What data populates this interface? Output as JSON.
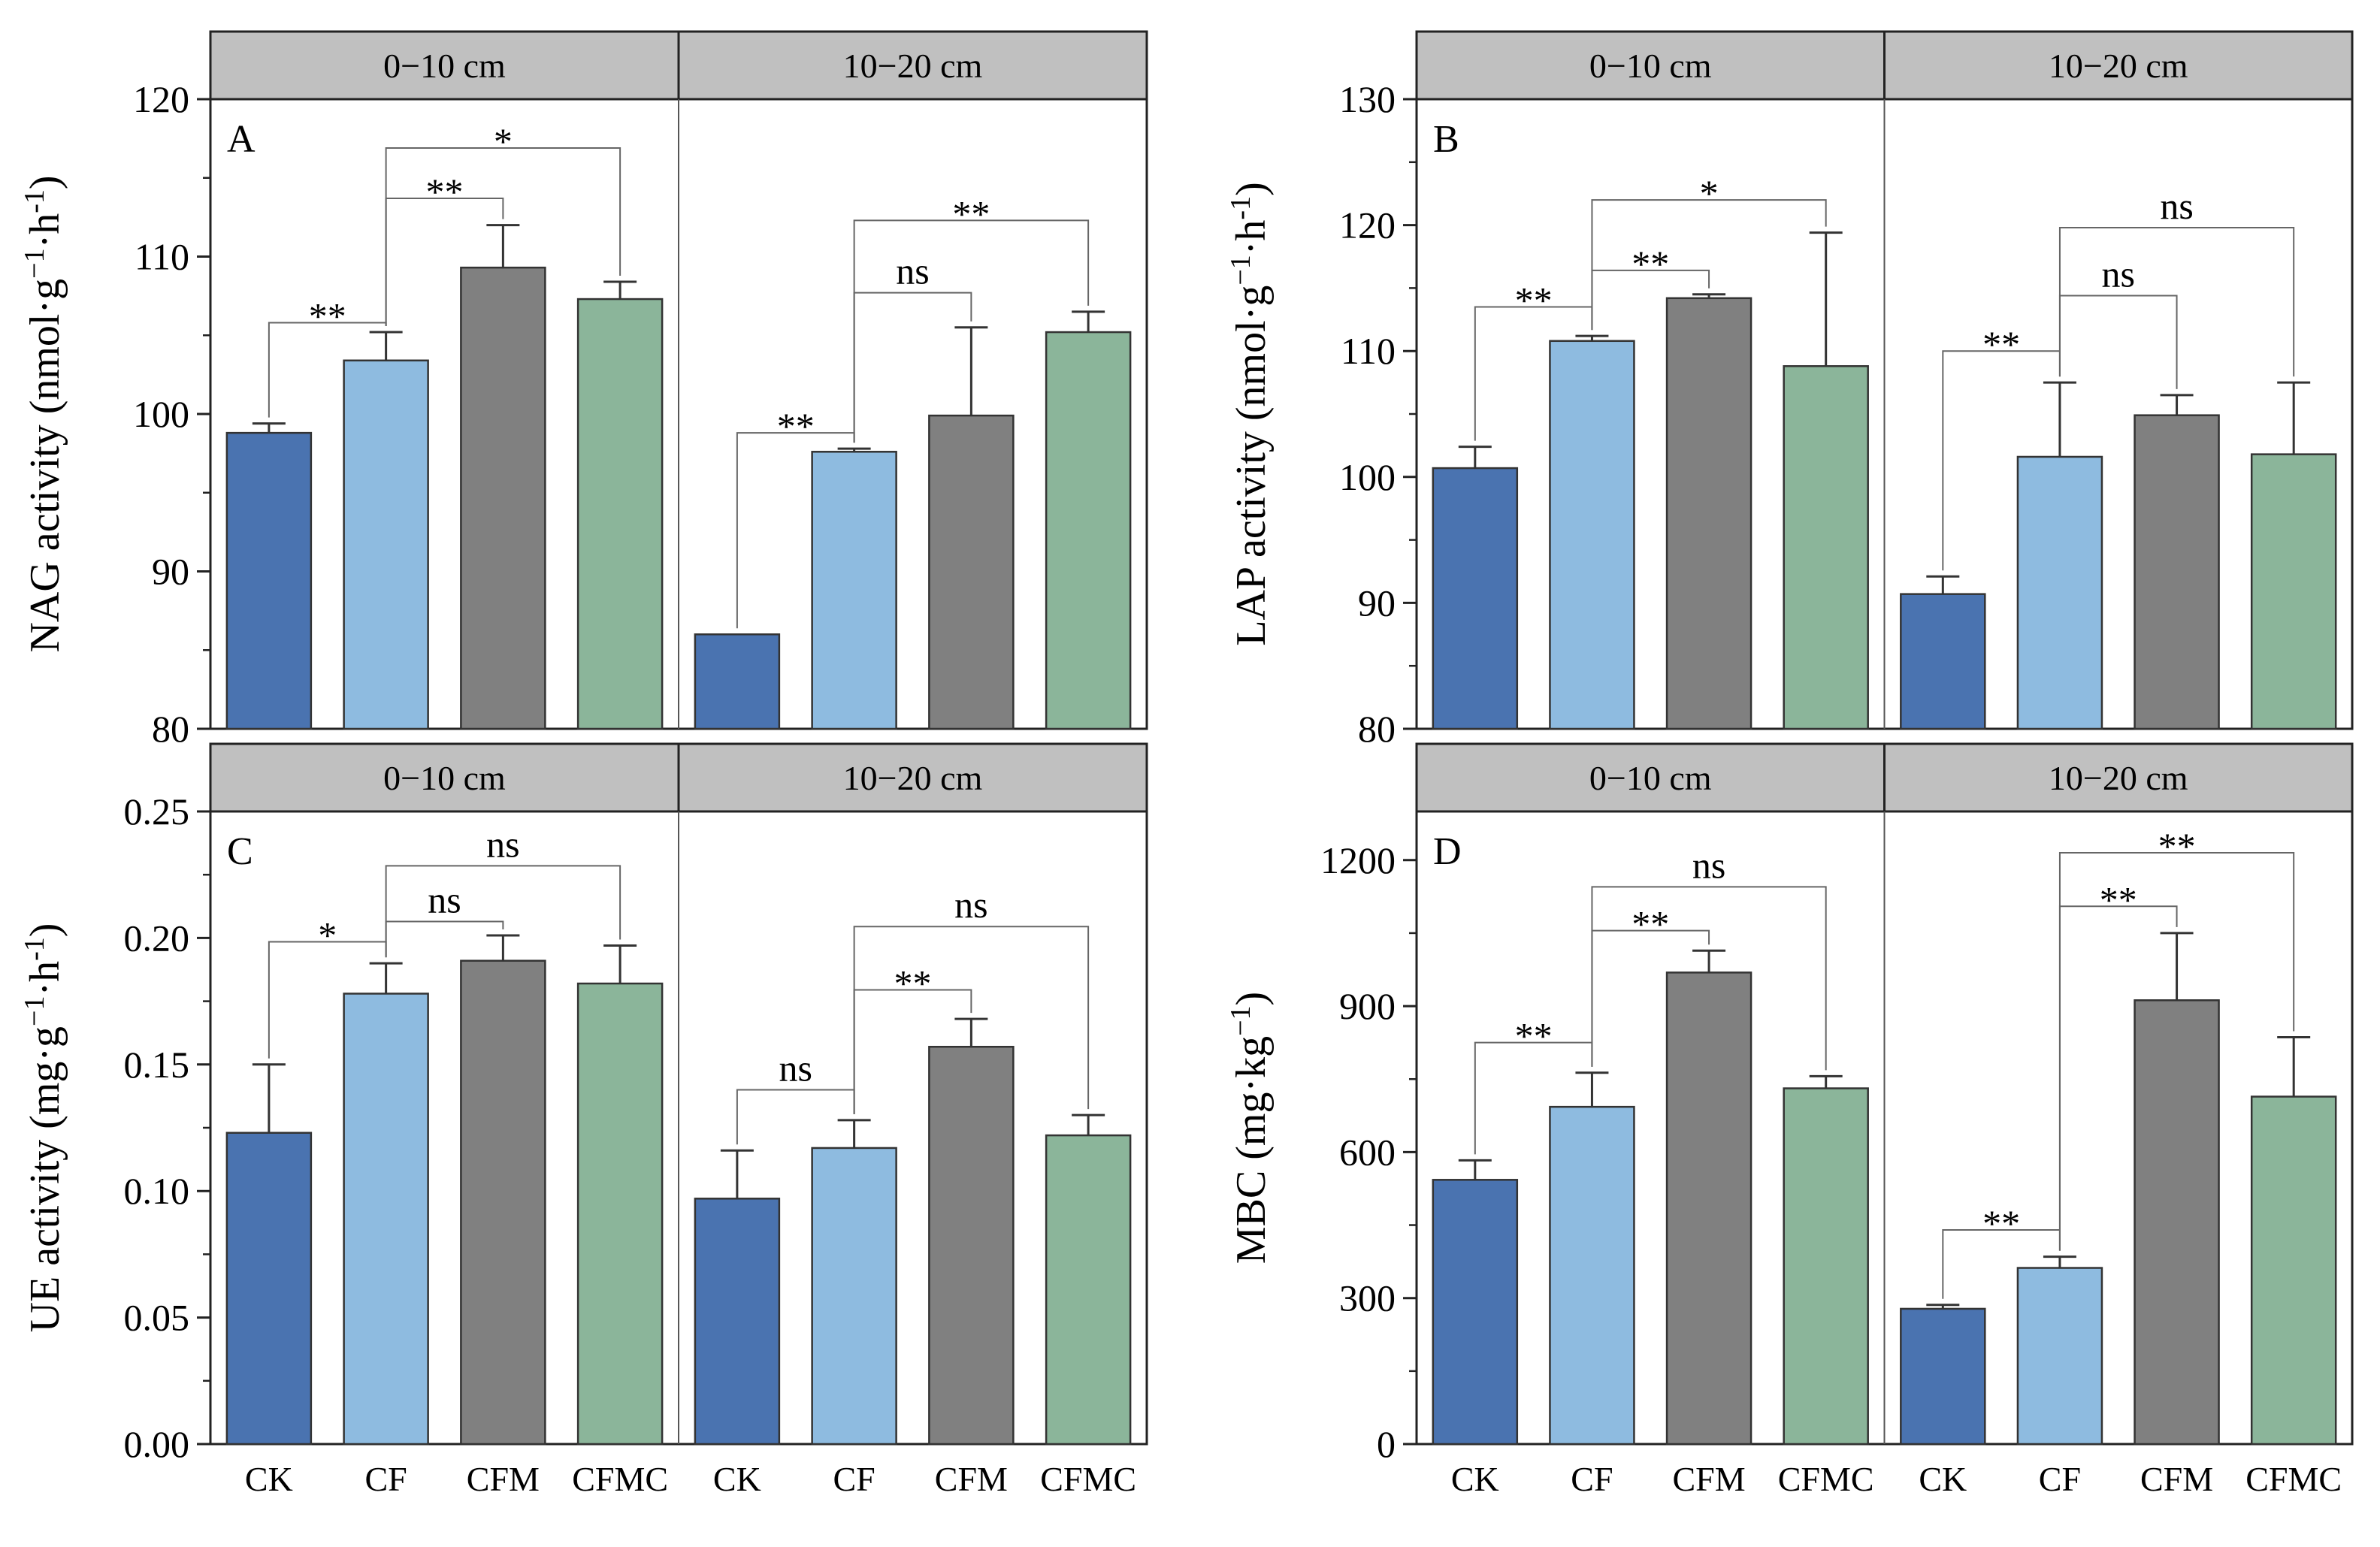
{
  "figure": {
    "type": "grouped bar chart panels",
    "colors": {
      "CK": "#4a73b0",
      "CF": "#8ebbe0",
      "CFM": "#808080",
      "CFMC": "#8bb59a",
      "strip": "#c0c0c0",
      "frame": "#333333",
      "bracket": "#666666"
    }
  },
  "chart_data": [
    {
      "type": "bar",
      "panel_letter": "A",
      "ylabel_main": "NAG activity (nmol·g",
      "ylabel_sup1": "−1",
      "ylabel_mid": "·h",
      "ylabel_sup2": "-1",
      "ylabel_end": ")",
      "ylim": [
        80,
        120
      ],
      "yticks": [
        "80",
        "90",
        "100",
        "110",
        "120"
      ],
      "ytick_values": [
        80,
        90,
        100,
        110,
        120
      ],
      "ytick_minor_step": 5,
      "categories": [
        "CK",
        "CF",
        "CFM",
        "CFMC"
      ],
      "groups": [
        {
          "label": "0−10 cm",
          "values": [
            98.8,
            103.4,
            109.3,
            107.3
          ],
          "errors": [
            0.6,
            1.8,
            2.7,
            1.1
          ],
          "comparisons": [
            {
              "from": 0,
              "to": 1,
              "label": "**",
              "level": 105.8
            },
            {
              "from": 1,
              "to": 2,
              "label": "**",
              "level": 113.7
            },
            {
              "from": 1,
              "to": 3,
              "label": "*",
              "level": 116.9
            }
          ]
        },
        {
          "label": "10−20 cm",
          "values": [
            86.0,
            97.6,
            99.9,
            105.2
          ],
          "errors": [
            0,
            0.2,
            5.6,
            1.3
          ],
          "comparisons": [
            {
              "from": 0,
              "to": 1,
              "label": "**",
              "level": 98.8
            },
            {
              "from": 1,
              "to": 2,
              "label": "ns",
              "level": 107.7
            },
            {
              "from": 1,
              "to": 3,
              "label": "**",
              "level": 112.3
            }
          ]
        }
      ]
    },
    {
      "type": "bar",
      "panel_letter": "B",
      "ylabel_main": "LAP activity (nmol·g",
      "ylabel_sup1": "−1",
      "ylabel_mid": "·h",
      "ylabel_sup2": "-1",
      "ylabel_end": ")",
      "ylim": [
        80,
        130
      ],
      "yticks": [
        "80",
        "90",
        "100",
        "110",
        "120",
        "130"
      ],
      "ytick_values": [
        80,
        90,
        100,
        110,
        120,
        130
      ],
      "ytick_minor_step": 5,
      "categories": [
        "CK",
        "CF",
        "CFM",
        "CFMC"
      ],
      "groups": [
        {
          "label": "0−10 cm",
          "values": [
            100.7,
            110.8,
            114.2,
            108.8
          ],
          "errors": [
            1.7,
            0.4,
            0.3,
            10.6
          ],
          "comparisons": [
            {
              "from": 0,
              "to": 1,
              "label": "**",
              "level": 113.5
            },
            {
              "from": 1,
              "to": 2,
              "label": "**",
              "level": 116.4
            },
            {
              "from": 1,
              "to": 3,
              "label": "*",
              "level": 122.0
            }
          ]
        },
        {
          "label": "10−20 cm",
          "values": [
            90.7,
            101.6,
            104.9,
            101.8
          ],
          "errors": [
            1.4,
            5.9,
            1.6,
            5.7
          ],
          "comparisons": [
            {
              "from": 0,
              "to": 1,
              "label": "**",
              "level": 110.0
            },
            {
              "from": 1,
              "to": 2,
              "label": "ns",
              "level": 114.4
            },
            {
              "from": 1,
              "to": 3,
              "label": "ns",
              "level": 119.8
            }
          ]
        }
      ]
    },
    {
      "type": "bar",
      "panel_letter": "C",
      "ylabel_main": "UE activity (mg·g",
      "ylabel_sup1": "−1",
      "ylabel_mid": "·h",
      "ylabel_sup2": "-1",
      "ylabel_end": ")",
      "ylim": [
        0,
        0.25
      ],
      "yticks": [
        "0.00",
        "0.05",
        "0.10",
        "0.15",
        "0.20",
        "0.25"
      ],
      "ytick_values": [
        0,
        0.05,
        0.1,
        0.15,
        0.2,
        0.25
      ],
      "ytick_minor_step": 0.025,
      "categories": [
        "CK",
        "CF",
        "CFM",
        "CFMC"
      ],
      "groups": [
        {
          "label": "0−10 cm",
          "values": [
            0.123,
            0.178,
            0.191,
            0.182
          ],
          "errors": [
            0.027,
            0.012,
            0.01,
            0.015
          ],
          "comparisons": [
            {
              "from": 0,
              "to": 1,
              "label": "*",
              "level": 0.1985
            },
            {
              "from": 1,
              "to": 2,
              "label": "ns",
              "level": 0.2065
            },
            {
              "from": 1,
              "to": 3,
              "label": "ns",
              "level": 0.2285
            }
          ]
        },
        {
          "label": "10−20 cm",
          "values": [
            0.097,
            0.117,
            0.157,
            0.122
          ],
          "errors": [
            0.019,
            0.011,
            0.011,
            0.008
          ],
          "comparisons": [
            {
              "from": 0,
              "to": 1,
              "label": "ns",
              "level": 0.14
            },
            {
              "from": 1,
              "to": 2,
              "label": "**",
              "level": 0.1795
            },
            {
              "from": 1,
              "to": 3,
              "label": "ns",
              "level": 0.2045
            }
          ]
        }
      ]
    },
    {
      "type": "bar",
      "panel_letter": "D",
      "ylabel_main": "MBC (mg·kg",
      "ylabel_sup1": "−1",
      "ylabel_mid": "",
      "ylabel_sup2": "",
      "ylabel_end": ")",
      "ylim": [
        0,
        1300
      ],
      "yticks": [
        "0",
        "300",
        "600",
        "900",
        "1200"
      ],
      "ytick_values": [
        0,
        300,
        600,
        900,
        1200
      ],
      "ytick_minor_step": 150,
      "categories": [
        "CK",
        "CF",
        "CFM",
        "CFMC"
      ],
      "groups": [
        {
          "label": "0−10 cm",
          "values": [
            543,
            693,
            969,
            731
          ],
          "errors": [
            40,
            70,
            45,
            25
          ],
          "comparisons": [
            {
              "from": 0,
              "to": 1,
              "label": "**",
              "level": 825
            },
            {
              "from": 1,
              "to": 2,
              "label": "**",
              "level": 1055
            },
            {
              "from": 1,
              "to": 3,
              "label": "ns",
              "level": 1145
            }
          ]
        },
        {
          "label": "10−20 cm",
          "values": [
            278,
            362,
            912,
            714
          ],
          "errors": [
            8,
            23,
            138,
            122
          ],
          "comparisons": [
            {
              "from": 0,
              "to": 1,
              "label": "**",
              "level": 440
            },
            {
              "from": 1,
              "to": 2,
              "label": "**",
              "level": 1105
            },
            {
              "from": 1,
              "to": 3,
              "label": "**",
              "level": 1215
            }
          ]
        }
      ]
    }
  ]
}
